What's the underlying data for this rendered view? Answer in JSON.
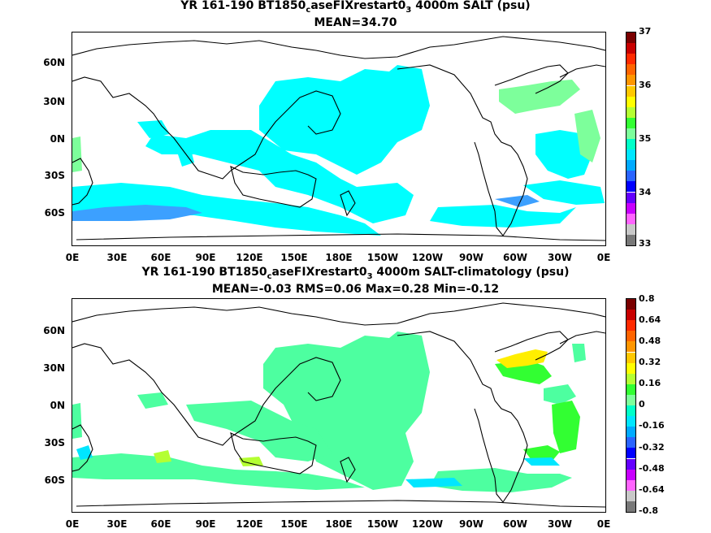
{
  "panels": [
    {
      "title_line1_pre": "YR 161-190 BT1850",
      "title_line1_sub1": "c",
      "title_line1_mid": "aseFIXrestart0",
      "title_line1_sub2": "3",
      "title_line1_post": " 4000m SALT (psu)",
      "title_line2": "MEAN=34.70",
      "colorbar_labels": [
        "37",
        "36",
        "35",
        "34",
        "33"
      ],
      "colorbar_colors": [
        "#7a0000",
        "#c80000",
        "#ff2a00",
        "#ff6400",
        "#ff9600",
        "#ffc800",
        "#ffff00",
        "#b4ff32",
        "#32ff32",
        "#7dff9b",
        "#00ffc8",
        "#00e6ff",
        "#00aaff",
        "#2a64ff",
        "#0000ff",
        "#6400ff",
        "#c800ff",
        "#ff64ff",
        "#c8c8c8",
        "#787878"
      ],
      "lat_labels": [
        "60N",
        "30N",
        "0N",
        "30S",
        "60S"
      ],
      "lon_labels": [
        "0E",
        "30E",
        "60E",
        "90E",
        "120E",
        "150E",
        "180E",
        "150W",
        "120W",
        "90W",
        "60W",
        "30W",
        "0E"
      ]
    },
    {
      "title_line1_pre": "YR 161-190 BT1850",
      "title_line1_sub1": "c",
      "title_line1_mid": "aseFIXrestart0",
      "title_line1_sub2": "3",
      "title_line1_post": " 4000m SALT-climatology (psu)",
      "title_line2": "MEAN=-0.03   RMS=0.06   Max=0.28   Min=-0.12",
      "colorbar_labels": [
        "0.8",
        "0.64",
        "0.48",
        "0.32",
        "0.16",
        "0",
        "-0.16",
        "-0.32",
        "-0.48",
        "-0.64",
        "-0.8"
      ],
      "colorbar_colors": [
        "#7a0000",
        "#c80000",
        "#ff2a00",
        "#ff6400",
        "#ff9600",
        "#ffc800",
        "#ffff00",
        "#b4ff32",
        "#32ff32",
        "#7dff9b",
        "#00ffc8",
        "#00e6ff",
        "#00aaff",
        "#2a64ff",
        "#0000ff",
        "#6400ff",
        "#c800ff",
        "#ff64ff",
        "#c8c8c8",
        "#787878"
      ],
      "lat_labels": [
        "60N",
        "30N",
        "0N",
        "30S",
        "60S"
      ],
      "lon_labels": [
        "0E",
        "30E",
        "60E",
        "90E",
        "120E",
        "150E",
        "180E",
        "150W",
        "120W",
        "90W",
        "60W",
        "30W",
        "0E"
      ]
    }
  ]
}
